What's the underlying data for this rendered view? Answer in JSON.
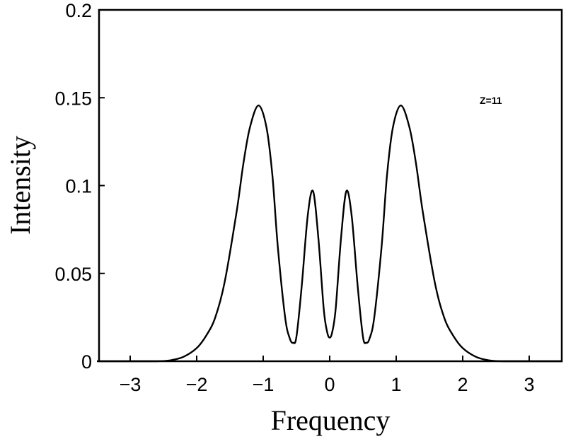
{
  "chart_data": {
    "type": "line",
    "title": "",
    "xlabel": "Frequency",
    "ylabel": "Intensity",
    "xlim": [
      -3.5,
      3.5
    ],
    "ylim": [
      0,
      0.2
    ],
    "grid": false,
    "legend": null,
    "xticks": [
      -3,
      -2,
      -1,
      0,
      1,
      2,
      3
    ],
    "xtick_labels": [
      "−3",
      "−2",
      "−1",
      "0",
      "1",
      "2",
      "3"
    ],
    "yticks": [
      0,
      0.05,
      0.1,
      0.15,
      0.2
    ],
    "ytick_labels": [
      "0",
      "0.05",
      "0.1",
      "0.15",
      "0.2"
    ],
    "annotations": [
      {
        "text": "Z=11",
        "x": 2.4,
        "y": 0.148
      }
    ],
    "series": [
      {
        "name": "Z=11",
        "x": [
          -3.5,
          -3.0,
          -2.6,
          -2.4,
          -2.2,
          -2.0,
          -1.85,
          -1.72,
          -1.58,
          -1.4,
          -1.3,
          -1.2,
          -1.07,
          -0.95,
          -0.86,
          -0.78,
          -0.67,
          -0.6,
          -0.55,
          -0.5,
          -0.42,
          -0.33,
          -0.25,
          -0.17,
          -0.09,
          -0.04,
          0.0,
          0.04,
          0.09,
          0.17,
          0.25,
          0.33,
          0.42,
          0.5,
          0.55,
          0.6,
          0.67,
          0.78,
          0.86,
          0.95,
          1.07,
          1.2,
          1.3,
          1.4,
          1.58,
          1.72,
          1.85,
          2.0,
          2.2,
          2.4,
          2.6,
          3.0,
          3.5
        ],
        "y": [
          0.0,
          0.0,
          0.0,
          0.0005,
          0.0025,
          0.0075,
          0.015,
          0.025,
          0.045,
          0.085,
          0.112,
          0.133,
          0.1456,
          0.133,
          0.105,
          0.065,
          0.025,
          0.013,
          0.0105,
          0.014,
          0.043,
          0.083,
          0.0968,
          0.07,
          0.03,
          0.017,
          0.0135,
          0.017,
          0.03,
          0.07,
          0.0968,
          0.083,
          0.043,
          0.014,
          0.0105,
          0.013,
          0.025,
          0.065,
          0.105,
          0.133,
          0.1456,
          0.133,
          0.112,
          0.085,
          0.045,
          0.025,
          0.015,
          0.0075,
          0.0025,
          0.0005,
          0.0,
          0.0,
          0.0
        ]
      }
    ]
  },
  "colors": {
    "line": "#000000",
    "background": "#ffffff"
  }
}
